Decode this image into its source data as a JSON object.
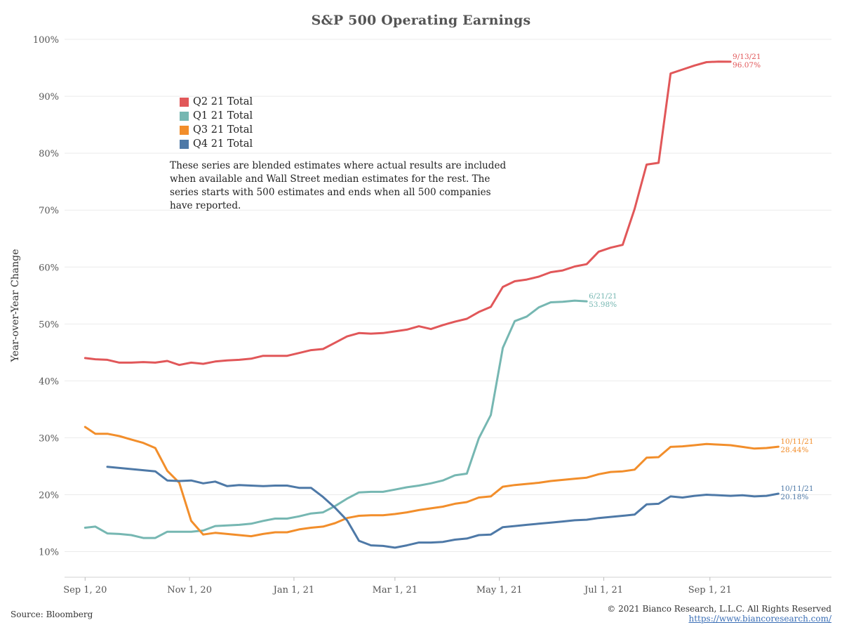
{
  "chart_data": {
    "type": "line",
    "title": "S&P 500 Operating Earnings",
    "ylabel": "Year-over-Year Change",
    "xlabel": "",
    "x_ticks": [
      "Sep 1, 20",
      "Nov 1, 20",
      "Jan 1, 21",
      "Mar 1, 21",
      "May 1, 21",
      "Jul 1, 21",
      "Sep 1, 21"
    ],
    "y_ticks": [
      "10%",
      "20%",
      "30%",
      "40%",
      "50%",
      "60%",
      "70%",
      "80%",
      "90%",
      "100%"
    ],
    "ylim": [
      0.055,
      1.005
    ],
    "xlim": [
      "2020-08-20",
      "2021-11-11"
    ],
    "grid": "horizontal",
    "legend_position": "top-left",
    "series": [
      {
        "name": "Q2 21 Total",
        "color": "#e15759",
        "end_label_date": "9/13/21",
        "end_label_value": "96.07%",
        "points": [
          [
            "2020-09-01",
            0.44
          ],
          [
            "2020-09-07",
            0.438
          ],
          [
            "2020-09-14",
            0.437
          ],
          [
            "2020-09-21",
            0.432
          ],
          [
            "2020-09-28",
            0.432
          ],
          [
            "2020-10-05",
            0.433
          ],
          [
            "2020-10-12",
            0.432
          ],
          [
            "2020-10-19",
            0.435
          ],
          [
            "2020-10-26",
            0.428
          ],
          [
            "2020-11-02",
            0.432
          ],
          [
            "2020-11-09",
            0.43
          ],
          [
            "2020-11-16",
            0.434
          ],
          [
            "2020-11-23",
            0.436
          ],
          [
            "2020-11-30",
            0.437
          ],
          [
            "2020-12-07",
            0.439
          ],
          [
            "2020-12-14",
            0.444
          ],
          [
            "2020-12-21",
            0.444
          ],
          [
            "2020-12-28",
            0.444
          ],
          [
            "2021-01-04",
            0.449
          ],
          [
            "2021-01-11",
            0.454
          ],
          [
            "2021-01-18",
            0.456
          ],
          [
            "2021-01-25",
            0.467
          ],
          [
            "2021-02-01",
            0.478
          ],
          [
            "2021-02-08",
            0.484
          ],
          [
            "2021-02-15",
            0.483
          ],
          [
            "2021-02-22",
            0.484
          ],
          [
            "2021-03-01",
            0.487
          ],
          [
            "2021-03-08",
            0.49
          ],
          [
            "2021-03-15",
            0.496
          ],
          [
            "2021-03-22",
            0.491
          ],
          [
            "2021-03-29",
            0.498
          ],
          [
            "2021-04-05",
            0.504
          ],
          [
            "2021-04-12",
            0.509
          ],
          [
            "2021-04-19",
            0.521
          ],
          [
            "2021-04-26",
            0.53
          ],
          [
            "2021-05-03",
            0.565
          ],
          [
            "2021-05-10",
            0.575
          ],
          [
            "2021-05-17",
            0.578
          ],
          [
            "2021-05-24",
            0.583
          ],
          [
            "2021-05-31",
            0.591
          ],
          [
            "2021-06-07",
            0.594
          ],
          [
            "2021-06-14",
            0.601
          ],
          [
            "2021-06-21",
            0.605
          ],
          [
            "2021-06-28",
            0.627
          ],
          [
            "2021-07-05",
            0.634
          ],
          [
            "2021-07-12",
            0.639
          ],
          [
            "2021-07-19",
            0.702
          ],
          [
            "2021-07-26",
            0.78
          ],
          [
            "2021-08-02",
            0.783
          ],
          [
            "2021-08-09",
            0.94
          ],
          [
            "2021-08-16",
            0.947
          ],
          [
            "2021-08-23",
            0.954
          ],
          [
            "2021-08-30",
            0.96
          ],
          [
            "2021-09-06",
            0.961
          ],
          [
            "2021-09-13",
            0.9607
          ]
        ]
      },
      {
        "name": "Q1 21 Total",
        "color": "#76b7b2",
        "end_label_date": "6/21/21",
        "end_label_value": "53.98%",
        "points": [
          [
            "2020-09-01",
            0.142
          ],
          [
            "2020-09-07",
            0.144
          ],
          [
            "2020-09-14",
            0.132
          ],
          [
            "2020-09-21",
            0.131
          ],
          [
            "2020-09-28",
            0.129
          ],
          [
            "2020-10-05",
            0.124
          ],
          [
            "2020-10-12",
            0.124
          ],
          [
            "2020-10-19",
            0.135
          ],
          [
            "2020-10-26",
            0.135
          ],
          [
            "2020-11-02",
            0.135
          ],
          [
            "2020-11-09",
            0.137
          ],
          [
            "2020-11-16",
            0.145
          ],
          [
            "2020-11-23",
            0.146
          ],
          [
            "2020-11-30",
            0.147
          ],
          [
            "2020-12-07",
            0.149
          ],
          [
            "2020-12-14",
            0.154
          ],
          [
            "2020-12-21",
            0.158
          ],
          [
            "2020-12-28",
            0.158
          ],
          [
            "2021-01-04",
            0.162
          ],
          [
            "2021-01-11",
            0.167
          ],
          [
            "2021-01-18",
            0.169
          ],
          [
            "2021-01-25",
            0.18
          ],
          [
            "2021-02-01",
            0.193
          ],
          [
            "2021-02-08",
            0.204
          ],
          [
            "2021-02-15",
            0.205
          ],
          [
            "2021-02-22",
            0.205
          ],
          [
            "2021-03-01",
            0.209
          ],
          [
            "2021-03-08",
            0.213
          ],
          [
            "2021-03-15",
            0.216
          ],
          [
            "2021-03-22",
            0.22
          ],
          [
            "2021-03-29",
            0.225
          ],
          [
            "2021-04-05",
            0.234
          ],
          [
            "2021-04-12",
            0.237
          ],
          [
            "2021-04-19",
            0.299
          ],
          [
            "2021-04-26",
            0.34
          ],
          [
            "2021-05-03",
            0.458
          ],
          [
            "2021-05-10",
            0.505
          ],
          [
            "2021-05-17",
            0.513
          ],
          [
            "2021-05-24",
            0.529
          ],
          [
            "2021-05-31",
            0.538
          ],
          [
            "2021-06-07",
            0.539
          ],
          [
            "2021-06-14",
            0.541
          ],
          [
            "2021-06-21",
            0.5398
          ]
        ]
      },
      {
        "name": "Q3 21 Total",
        "color": "#f28e2b",
        "end_label_date": "10/11/21",
        "end_label_value": "28.44%",
        "points": [
          [
            "2020-09-01",
            0.319
          ],
          [
            "2020-09-07",
            0.307
          ],
          [
            "2020-09-14",
            0.307
          ],
          [
            "2020-09-21",
            0.303
          ],
          [
            "2020-09-28",
            0.297
          ],
          [
            "2020-10-05",
            0.291
          ],
          [
            "2020-10-12",
            0.282
          ],
          [
            "2020-10-19",
            0.242
          ],
          [
            "2020-10-26",
            0.221
          ],
          [
            "2020-11-02",
            0.154
          ],
          [
            "2020-11-09",
            0.13
          ],
          [
            "2020-11-16",
            0.133
          ],
          [
            "2020-11-23",
            0.131
          ],
          [
            "2020-11-30",
            0.129
          ],
          [
            "2020-12-07",
            0.127
          ],
          [
            "2020-12-14",
            0.131
          ],
          [
            "2020-12-21",
            0.134
          ],
          [
            "2020-12-28",
            0.134
          ],
          [
            "2021-01-04",
            0.139
          ],
          [
            "2021-01-11",
            0.142
          ],
          [
            "2021-01-18",
            0.144
          ],
          [
            "2021-01-25",
            0.15
          ],
          [
            "2021-02-01",
            0.159
          ],
          [
            "2021-02-08",
            0.163
          ],
          [
            "2021-02-15",
            0.164
          ],
          [
            "2021-02-22",
            0.164
          ],
          [
            "2021-03-01",
            0.166
          ],
          [
            "2021-03-08",
            0.169
          ],
          [
            "2021-03-15",
            0.173
          ],
          [
            "2021-03-22",
            0.176
          ],
          [
            "2021-03-29",
            0.179
          ],
          [
            "2021-04-05",
            0.184
          ],
          [
            "2021-04-12",
            0.187
          ],
          [
            "2021-04-19",
            0.195
          ],
          [
            "2021-04-26",
            0.197
          ],
          [
            "2021-05-03",
            0.214
          ],
          [
            "2021-05-10",
            0.217
          ],
          [
            "2021-05-17",
            0.219
          ],
          [
            "2021-05-24",
            0.221
          ],
          [
            "2021-05-31",
            0.224
          ],
          [
            "2021-06-07",
            0.226
          ],
          [
            "2021-06-14",
            0.228
          ],
          [
            "2021-06-21",
            0.23
          ],
          [
            "2021-06-28",
            0.236
          ],
          [
            "2021-07-05",
            0.24
          ],
          [
            "2021-07-12",
            0.241
          ],
          [
            "2021-07-19",
            0.244
          ],
          [
            "2021-07-26",
            0.265
          ],
          [
            "2021-08-02",
            0.266
          ],
          [
            "2021-08-09",
            0.284
          ],
          [
            "2021-08-16",
            0.285
          ],
          [
            "2021-08-23",
            0.287
          ],
          [
            "2021-08-30",
            0.289
          ],
          [
            "2021-09-06",
            0.288
          ],
          [
            "2021-09-13",
            0.287
          ],
          [
            "2021-09-20",
            0.284
          ],
          [
            "2021-09-27",
            0.281
          ],
          [
            "2021-10-04",
            0.282
          ],
          [
            "2021-10-11",
            0.2844
          ]
        ]
      },
      {
        "name": "Q4 21 Total",
        "color": "#4e79a7",
        "end_label_date": "10/11/21",
        "end_label_value": "20.18%",
        "points": [
          [
            "2020-09-14",
            0.249
          ],
          [
            "2020-09-21",
            0.247
          ],
          [
            "2020-09-28",
            0.245
          ],
          [
            "2020-10-05",
            0.243
          ],
          [
            "2020-10-12",
            0.241
          ],
          [
            "2020-10-19",
            0.225
          ],
          [
            "2020-10-26",
            0.224
          ],
          [
            "2020-11-02",
            0.225
          ],
          [
            "2020-11-09",
            0.22
          ],
          [
            "2020-11-16",
            0.223
          ],
          [
            "2020-11-23",
            0.215
          ],
          [
            "2020-11-30",
            0.217
          ],
          [
            "2020-12-07",
            0.216
          ],
          [
            "2020-12-14",
            0.215
          ],
          [
            "2020-12-21",
            0.216
          ],
          [
            "2020-12-28",
            0.216
          ],
          [
            "2021-01-04",
            0.212
          ],
          [
            "2021-01-11",
            0.212
          ],
          [
            "2021-01-18",
            0.196
          ],
          [
            "2021-01-25",
            0.177
          ],
          [
            "2021-02-01",
            0.155
          ],
          [
            "2021-02-08",
            0.119
          ],
          [
            "2021-02-15",
            0.111
          ],
          [
            "2021-02-22",
            0.11
          ],
          [
            "2021-03-01",
            0.107
          ],
          [
            "2021-03-08",
            0.111
          ],
          [
            "2021-03-15",
            0.116
          ],
          [
            "2021-03-22",
            0.116
          ],
          [
            "2021-03-29",
            0.117
          ],
          [
            "2021-04-05",
            0.121
          ],
          [
            "2021-04-12",
            0.123
          ],
          [
            "2021-04-19",
            0.129
          ],
          [
            "2021-04-26",
            0.13
          ],
          [
            "2021-05-03",
            0.143
          ],
          [
            "2021-05-10",
            0.145
          ],
          [
            "2021-05-17",
            0.147
          ],
          [
            "2021-05-24",
            0.149
          ],
          [
            "2021-05-31",
            0.151
          ],
          [
            "2021-06-07",
            0.153
          ],
          [
            "2021-06-14",
            0.155
          ],
          [
            "2021-06-21",
            0.156
          ],
          [
            "2021-06-28",
            0.159
          ],
          [
            "2021-07-05",
            0.161
          ],
          [
            "2021-07-12",
            0.163
          ],
          [
            "2021-07-19",
            0.165
          ],
          [
            "2021-07-26",
            0.183
          ],
          [
            "2021-08-02",
            0.184
          ],
          [
            "2021-08-09",
            0.197
          ],
          [
            "2021-08-16",
            0.195
          ],
          [
            "2021-08-23",
            0.198
          ],
          [
            "2021-08-30",
            0.2
          ],
          [
            "2021-09-06",
            0.199
          ],
          [
            "2021-09-13",
            0.198
          ],
          [
            "2021-09-20",
            0.199
          ],
          [
            "2021-09-27",
            0.197
          ],
          [
            "2021-10-04",
            0.198
          ],
          [
            "2021-10-11",
            0.2018
          ]
        ]
      }
    ],
    "legend_order": [
      "Q2 21 Total",
      "Q1 21 Total",
      "Q3 21 Total",
      "Q4 21 Total"
    ],
    "annotation": "These series are blended estimates where actual results are included when available and Wall Street median estimates for the rest.  The series starts with 500 estimates and ends when all 500 companies have reported."
  },
  "footer": {
    "source": "Source: Bloomberg",
    "copyright": "© 2021 Bianco Research, L.L.C. All Rights Reserved",
    "url": "https://www.biancoresearch.com/"
  }
}
